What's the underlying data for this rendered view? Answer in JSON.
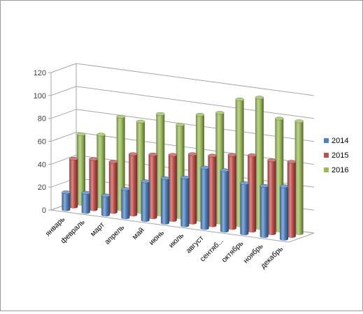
{
  "chart_data": {
    "type": "bar",
    "title": "",
    "xlabel": "",
    "ylabel": "",
    "ylim": [
      0,
      120
    ],
    "yticks": [
      "0",
      "20",
      "40",
      "60",
      "80",
      "100",
      "120"
    ],
    "grid": true,
    "legend_position": "right",
    "categories": [
      "январь",
      "февраль",
      "март",
      "апрель",
      "май",
      "июнь",
      "июль",
      "август",
      "сентяб...",
      "октябрь",
      "ноябрь",
      "декабрь"
    ],
    "series": [
      {
        "name": "2014",
        "color": "#4f81bd",
        "values": [
          15,
          17,
          17,
          25,
          34,
          39,
          42,
          53,
          53,
          44,
          44,
          46
        ]
      },
      {
        "name": "2015",
        "color": "#c0504d",
        "values": [
          42,
          44,
          44,
          53,
          55,
          57,
          60,
          61,
          64,
          66,
          64,
          65
        ]
      },
      {
        "name": "2016",
        "color": "#9bbb59",
        "values": [
          61,
          63,
          81,
          79,
          88,
          81,
          92,
          96,
          110,
          114,
          98,
          98
        ]
      }
    ]
  }
}
